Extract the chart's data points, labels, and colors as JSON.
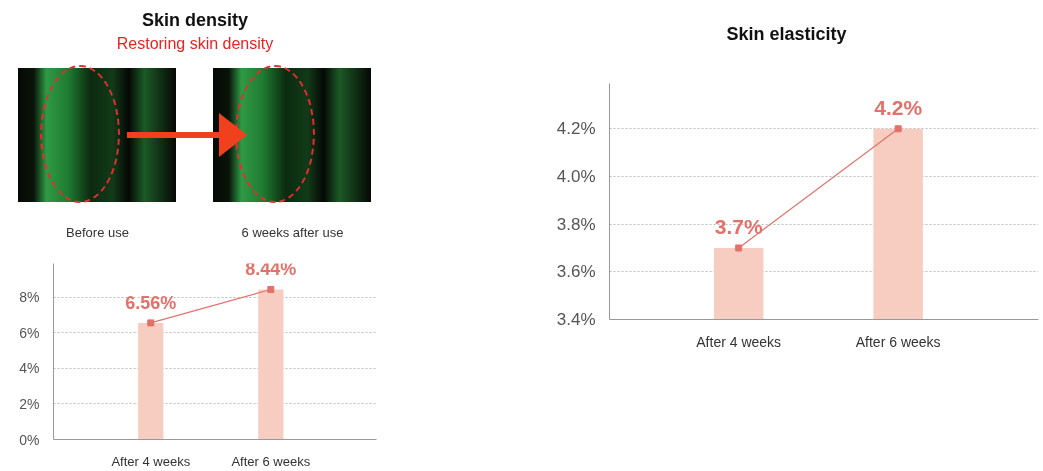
{
  "chart_data": [
    {
      "type": "bar",
      "title": "Skin density",
      "subtitle": "Restoring skin density",
      "annotations": [
        "Before use",
        "6 weeks after use"
      ],
      "categories": [
        "After 4 weeks",
        "After 6 weeks"
      ],
      "series": [
        {
          "color": "#f8cdc1",
          "values": [
            6.56,
            8.44
          ]
        },
        {
          "type": "line",
          "color": "#e2716a",
          "values": [
            6.56,
            8.44
          ],
          "value_labels": [
            "6.56%",
            "8.44%"
          ]
        }
      ],
      "ylim": [
        0,
        9.9
      ],
      "yticks": [
        {
          "value": 0,
          "label": "0%"
        },
        {
          "value": 2,
          "label": "2%"
        },
        {
          "value": 4,
          "label": "4%"
        },
        {
          "value": 6,
          "label": "6%"
        },
        {
          "value": 8,
          "label": "8%"
        }
      ],
      "grid": "y",
      "marker": "square"
    },
    {
      "type": "bar",
      "title": "Skin elasticity",
      "categories": [
        "After 4 weeks",
        "After 6 weeks"
      ],
      "series": [
        {
          "color": "#f8cdc1",
          "values": [
            3.7,
            4.2
          ]
        },
        {
          "type": "line",
          "color": "#e2716a",
          "values": [
            3.7,
            4.2
          ],
          "value_labels": [
            "3.7%",
            "4.2%"
          ]
        }
      ],
      "ylim": [
        3.4,
        4.39
      ],
      "yticks": [
        {
          "value": 3.4,
          "label": "3.4%"
        },
        {
          "value": 3.6,
          "label": "3.6%"
        },
        {
          "value": 3.8,
          "label": "3.8%"
        },
        {
          "value": 4.0,
          "label": "4.0%"
        },
        {
          "value": 4.2,
          "label": "4.2%"
        }
      ],
      "grid": "y",
      "marker": "square"
    }
  ]
}
